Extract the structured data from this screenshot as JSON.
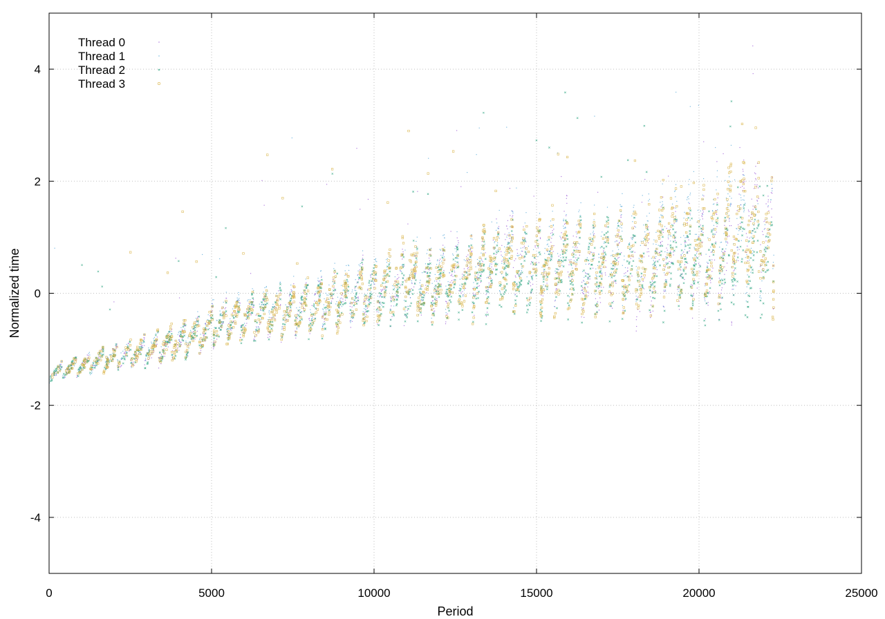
{
  "chart_data": {
    "type": "scatter",
    "title": "",
    "xlabel": "Period",
    "ylabel": "Normalized time",
    "xlim": [
      0,
      25000
    ],
    "ylim": [
      -5,
      5
    ],
    "xticks": [
      0,
      5000,
      10000,
      15000,
      20000,
      25000
    ],
    "xtick_labels": [
      "0",
      "5000",
      "10000",
      "15000",
      "20000",
      "25000"
    ],
    "yticks": [
      -4,
      -2,
      0,
      2,
      4
    ],
    "ytick_labels": [
      "-4",
      "-2",
      "0",
      "2",
      "4"
    ],
    "grid": true,
    "legend_position": "top-left",
    "series": [
      {
        "name": "Thread 0",
        "color": "#9b59d6",
        "marker": "dot",
        "x": [
          0,
          500,
          1000,
          1500,
          2000,
          2500,
          3000,
          3500,
          4000,
          4500,
          5000,
          5500,
          6000,
          6500,
          7000,
          7500,
          8000,
          8500,
          9000,
          9500,
          10000,
          10500,
          11000,
          11500,
          12000,
          12500,
          13000,
          13500,
          14000,
          14500,
          15000,
          15500,
          16000,
          16500,
          17000,
          17500,
          18000,
          18500,
          19000,
          19500,
          20000,
          20500,
          21000,
          21500,
          22000,
          22300
        ],
        "y": [
          -1.45,
          -1.35,
          -1.3,
          -1.2,
          -1.15,
          -1.1,
          -1.05,
          -1.0,
          -0.9,
          -0.8,
          -0.6,
          -0.5,
          -0.45,
          -0.4,
          -0.35,
          -0.3,
          -0.25,
          -0.15,
          -0.1,
          0.0,
          0.05,
          0.1,
          0.15,
          0.1,
          0.2,
          0.25,
          0.3,
          0.4,
          1.0,
          0.6,
          0.4,
          0.5,
          1.0,
          0.3,
          0.3,
          0.5,
          0.4,
          0.3,
          0.8,
          0.5,
          0.5,
          0.6,
          0.7,
          1.5,
          1.2,
          0.8
        ]
      },
      {
        "name": "Thread 1",
        "color": "#56a8d8",
        "marker": "dot",
        "x": [
          0,
          500,
          1000,
          1500,
          2000,
          2500,
          3000,
          3500,
          4000,
          4500,
          5000,
          5500,
          6000,
          6500,
          7000,
          7500,
          8000,
          8500,
          9000,
          9500,
          10000,
          10500,
          11000,
          11500,
          12000,
          12500,
          13000,
          13500,
          14000,
          14500,
          15000,
          15500,
          16000,
          16500,
          17000,
          17500,
          18000,
          18500,
          19000,
          19500,
          20000,
          20500,
          21000,
          21500,
          22000,
          22300
        ],
        "y": [
          -1.45,
          -1.35,
          -1.3,
          -1.2,
          -1.1,
          -1.05,
          -1.0,
          -0.9,
          -0.8,
          -0.7,
          -0.55,
          -0.4,
          -0.35,
          -0.3,
          -0.2,
          -0.2,
          -0.15,
          -0.05,
          0.0,
          0.1,
          0.1,
          0.2,
          0.2,
          0.3,
          0.35,
          0.4,
          0.45,
          0.5,
          0.7,
          0.6,
          0.6,
          0.7,
          0.8,
          0.6,
          0.7,
          0.8,
          0.9,
          0.8,
          0.9,
          0.9,
          1.0,
          1.0,
          1.1,
          1.0,
          0.9,
          1.0
        ]
      },
      {
        "name": "Thread 2",
        "color": "#1f9e78",
        "marker": "cross",
        "x": [
          0,
          500,
          1000,
          1500,
          2000,
          2500,
          3000,
          3500,
          4000,
          4500,
          5000,
          5500,
          6000,
          6500,
          7000,
          7500,
          8000,
          8500,
          9000,
          9500,
          10000,
          10500,
          11000,
          11500,
          12000,
          12500,
          13000,
          13500,
          14000,
          14500,
          15000,
          15500,
          16000,
          16500,
          17000,
          17500,
          18000,
          18500,
          19000,
          19500,
          20000,
          20500,
          21000,
          21500,
          22000,
          22300
        ],
        "y": [
          -1.45,
          -1.35,
          -1.3,
          -1.2,
          -1.15,
          -1.1,
          -1.05,
          -0.95,
          -0.9,
          -0.8,
          -0.65,
          -0.5,
          -0.45,
          -0.4,
          -0.35,
          -0.3,
          -0.25,
          -0.2,
          -0.15,
          -0.05,
          0.0,
          0.05,
          0.05,
          0.1,
          0.15,
          0.2,
          0.25,
          0.3,
          0.4,
          0.4,
          0.4,
          0.45,
          0.5,
          0.45,
          0.45,
          0.5,
          0.5,
          0.5,
          0.55,
          0.55,
          0.55,
          0.6,
          0.6,
          0.6,
          0.55,
          0.6
        ]
      },
      {
        "name": "Thread 3",
        "color": "#d4a92e",
        "marker": "square",
        "x": [
          0,
          500,
          1000,
          1500,
          2000,
          2500,
          3000,
          3500,
          4000,
          4500,
          5000,
          5500,
          6000,
          6500,
          7000,
          7500,
          8000,
          8500,
          9000,
          9500,
          10000,
          10500,
          11000,
          11500,
          12000,
          12500,
          13000,
          13500,
          14000,
          14500,
          15000,
          15500,
          16000,
          16500,
          17000,
          17500,
          18000,
          18500,
          19000,
          19500,
          20000,
          20500,
          21000,
          21500,
          22000,
          22300
        ],
        "y": [
          -1.45,
          -1.35,
          -1.3,
          -1.2,
          -1.15,
          -1.1,
          -1.0,
          -0.95,
          -0.85,
          -0.75,
          -0.6,
          -0.5,
          -0.45,
          -0.4,
          -0.35,
          -0.3,
          -0.25,
          -0.2,
          -0.15,
          -0.05,
          0.0,
          0.1,
          0.5,
          0.05,
          0.1,
          0.2,
          0.25,
          0.6,
          0.5,
          0.5,
          0.5,
          0.5,
          0.6,
          0.5,
          0.5,
          0.6,
          0.6,
          0.5,
          1.0,
          0.7,
          0.8,
          0.9,
          1.4,
          1.2,
          0.9,
          0.8
        ]
      }
    ]
  }
}
